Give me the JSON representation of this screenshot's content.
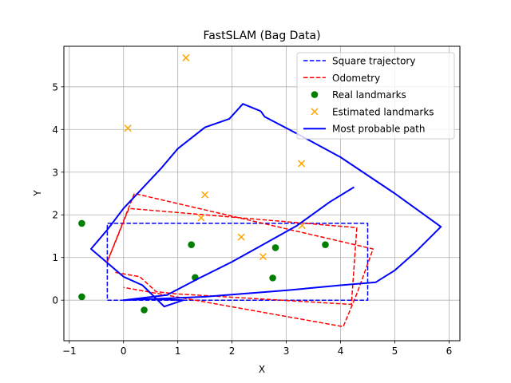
{
  "chart_data": {
    "type": "line",
    "title": "FastSLAM (Bag Data)",
    "xlabel": "X",
    "ylabel": "Y",
    "xlim": [
      -1.1,
      6.2
    ],
    "ylim": [
      -0.95,
      5.95
    ],
    "xticks": [
      -1,
      0,
      1,
      2,
      3,
      4,
      5,
      6
    ],
    "yticks": [
      0,
      1,
      2,
      3,
      4,
      5
    ],
    "grid": true,
    "legend_position": "top-right",
    "series": [
      {
        "name": "Square trajectory",
        "style": "dashed",
        "color": "#0000ff",
        "points": [
          [
            -0.3,
            0.0
          ],
          [
            4.5,
            0.0
          ],
          [
            4.5,
            1.8
          ],
          [
            -0.3,
            1.8
          ],
          [
            -0.3,
            0.0
          ]
        ]
      },
      {
        "name": "Odometry",
        "style": "dashed",
        "color": "#ff0000",
        "points": [
          [
            -0.15,
            0.65
          ],
          [
            0.3,
            0.55
          ],
          [
            0.6,
            0.2
          ],
          [
            0.95,
            0.15
          ],
          [
            4.2,
            -0.1
          ],
          [
            4.3,
            1.7
          ],
          [
            0.1,
            2.15
          ],
          [
            -0.3,
            0.9
          ],
          [
            0.2,
            2.5
          ],
          [
            4.6,
            1.2
          ],
          [
            4.3,
            0.15
          ],
          [
            4.05,
            -0.62
          ],
          [
            0.0,
            0.3
          ]
        ]
      },
      {
        "name": "Real landmarks",
        "style": "points",
        "marker": "circle",
        "color": "#008000",
        "points": [
          [
            -0.77,
            1.8
          ],
          [
            -0.77,
            0.08
          ],
          [
            0.38,
            -0.23
          ],
          [
            1.25,
            1.3
          ],
          [
            1.32,
            0.53
          ],
          [
            2.75,
            0.52
          ],
          [
            2.8,
            1.23
          ],
          [
            3.72,
            1.3
          ]
        ]
      },
      {
        "name": "Estimated landmarks",
        "style": "points",
        "marker": "x",
        "color": "#ffa500",
        "points": [
          [
            1.15,
            5.68
          ],
          [
            0.08,
            4.03
          ],
          [
            3.28,
            3.2
          ],
          [
            1.5,
            2.47
          ],
          [
            1.43,
            1.93
          ],
          [
            2.17,
            1.48
          ],
          [
            2.57,
            1.02
          ],
          [
            3.29,
            1.75
          ]
        ]
      },
      {
        "name": "Most probable path",
        "style": "solid",
        "color": "#0000ff",
        "points": [
          [
            2.53,
            4.43
          ],
          [
            2.2,
            4.6
          ],
          [
            1.95,
            4.25
          ],
          [
            1.5,
            4.05
          ],
          [
            1.0,
            3.55
          ],
          [
            0.7,
            3.1
          ],
          [
            0.0,
            2.15
          ],
          [
            -0.3,
            1.65
          ],
          [
            -0.6,
            1.2
          ],
          [
            0.0,
            0.55
          ],
          [
            0.35,
            0.35
          ],
          [
            0.75,
            -0.15
          ],
          [
            1.1,
            0.0
          ],
          [
            0.5,
            0.03
          ],
          [
            0.0,
            0.0
          ],
          [
            1.5,
            0.08
          ],
          [
            3.0,
            0.23
          ],
          [
            4.0,
            0.35
          ],
          [
            4.65,
            0.42
          ],
          [
            5.0,
            0.7
          ],
          [
            5.4,
            1.15
          ],
          [
            5.85,
            1.72
          ],
          [
            5.0,
            2.5
          ],
          [
            4.0,
            3.35
          ],
          [
            3.2,
            3.9
          ],
          [
            2.6,
            4.3
          ],
          [
            2.53,
            4.43
          ]
        ]
      },
      {
        "name": "",
        "style": "solid",
        "color": "#0000ff",
        "points": [
          [
            4.25,
            2.65
          ],
          [
            3.8,
            2.3
          ],
          [
            3.2,
            1.75
          ],
          [
            2.5,
            1.25
          ],
          [
            2.0,
            0.9
          ],
          [
            1.4,
            0.52
          ],
          [
            0.8,
            0.12
          ],
          [
            0.0,
            0.0
          ]
        ]
      }
    ],
    "legend": [
      {
        "label": "Square trajectory",
        "kind": "dashed-line",
        "color": "#0000ff"
      },
      {
        "label": "Odometry",
        "kind": "dashed-line",
        "color": "#ff0000"
      },
      {
        "label": "Real landmarks",
        "kind": "circle-marker",
        "color": "#008000"
      },
      {
        "label": "Estimated landmarks",
        "kind": "x-marker",
        "color": "#ffa500"
      },
      {
        "label": "Most probable path",
        "kind": "solid-line",
        "color": "#0000ff"
      }
    ]
  }
}
